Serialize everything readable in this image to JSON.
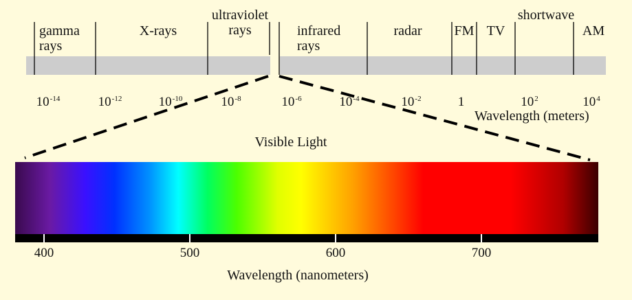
{
  "spectrum_bands": {
    "gamma": [
      "gamma",
      "rays"
    ],
    "xrays": "X-rays",
    "ultraviolet": [
      "ultraviolet",
      "rays"
    ],
    "infrared": [
      "infrared",
      "rays"
    ],
    "radar": "radar",
    "fm": "FM",
    "tv": "TV",
    "shortwave": "shortwave",
    "am": "AM"
  },
  "wavelength_scale": {
    "ticks": [
      {
        "base": "10",
        "exp": "-14"
      },
      {
        "base": "10",
        "exp": "-12"
      },
      {
        "base": "10",
        "exp": "-10"
      },
      {
        "base": "10",
        "exp": "-8"
      },
      {
        "base": "10",
        "exp": "-6"
      },
      {
        "base": "10",
        "exp": "-4"
      },
      {
        "base": "10",
        "exp": "-2"
      },
      {
        "base": "1",
        "exp": ""
      },
      {
        "base": "10",
        "exp": "2"
      },
      {
        "base": "10",
        "exp": "4"
      }
    ],
    "label": "Wavelength (meters)"
  },
  "visible_light": {
    "title": "Visible Light",
    "ticks": [
      "400",
      "500",
      "600",
      "700"
    ],
    "axis_label": "Wavelength (nanometers)"
  },
  "colors": {
    "background": "#fffbdc",
    "band_fill": "#cdcdcd",
    "spectrum": [
      "#3a0a4e",
      "#6a1aa4",
      "#3a10ff",
      "#0030ff",
      "#0090ff",
      "#00ffff",
      "#00ff60",
      "#4cff00",
      "#e0ff00",
      "#ffff00",
      "#ffa000",
      "#ff4400",
      "#ff0000",
      "#ff0000",
      "#b00000",
      "#3a0000"
    ]
  }
}
